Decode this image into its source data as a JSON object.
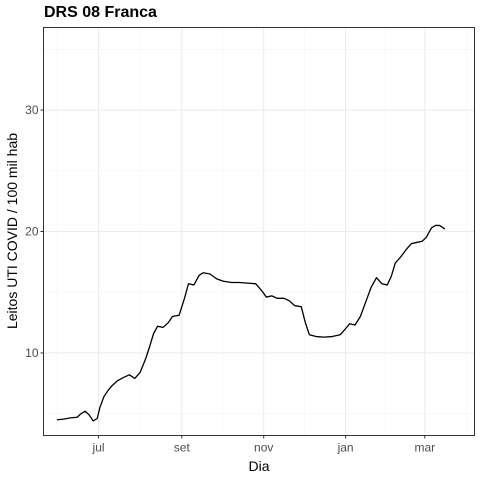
{
  "chart_data": {
    "type": "line",
    "title": "DRS 08 Franca",
    "xlabel": "Dia",
    "ylabel": "Leitos UTI COVID / 100 mil hab",
    "x_type": "date",
    "xlim": [
      "2020-05-21",
      "2021-04-07"
    ],
    "ylim": [
      3.2,
      36.8
    ],
    "x_ticks": [
      {
        "date": "2020-07-01",
        "label": "jul"
      },
      {
        "date": "2020-09-01",
        "label": "set"
      },
      {
        "date": "2020-11-01",
        "label": "nov"
      },
      {
        "date": "2021-01-01",
        "label": "jan"
      },
      {
        "date": "2021-03-01",
        "label": "mar"
      }
    ],
    "y_ticks": [
      10,
      20,
      30
    ],
    "grid": true,
    "legend": "none",
    "series": [
      {
        "color": "#000000",
        "points": [
          [
            "2020-05-31",
            4.5
          ],
          [
            "2020-06-05",
            4.55
          ],
          [
            "2020-06-10",
            4.65
          ],
          [
            "2020-06-15",
            4.7
          ],
          [
            "2020-06-18",
            5.0
          ],
          [
            "2020-06-21",
            5.2
          ],
          [
            "2020-06-24",
            4.9
          ],
          [
            "2020-06-27",
            4.4
          ],
          [
            "2020-06-30",
            4.6
          ],
          [
            "2020-07-02",
            5.5
          ],
          [
            "2020-07-05",
            6.4
          ],
          [
            "2020-07-08",
            6.9
          ],
          [
            "2020-07-11",
            7.3
          ],
          [
            "2020-07-15",
            7.7
          ],
          [
            "2020-07-20",
            8.0
          ],
          [
            "2020-07-24",
            8.2
          ],
          [
            "2020-07-28",
            7.9
          ],
          [
            "2020-08-01",
            8.4
          ],
          [
            "2020-08-05",
            9.5
          ],
          [
            "2020-08-08",
            10.5
          ],
          [
            "2020-08-11",
            11.6
          ],
          [
            "2020-08-14",
            12.2
          ],
          [
            "2020-08-18",
            12.1
          ],
          [
            "2020-08-22",
            12.5
          ],
          [
            "2020-08-25",
            13.0
          ],
          [
            "2020-08-30",
            13.1
          ],
          [
            "2020-09-03",
            14.5
          ],
          [
            "2020-09-06",
            15.7
          ],
          [
            "2020-09-10",
            15.6
          ],
          [
            "2020-09-14",
            16.4
          ],
          [
            "2020-09-17",
            16.6
          ],
          [
            "2020-09-22",
            16.5
          ],
          [
            "2020-09-27",
            16.1
          ],
          [
            "2020-10-02",
            15.9
          ],
          [
            "2020-10-08",
            15.8
          ],
          [
            "2020-10-14",
            15.8
          ],
          [
            "2020-10-20",
            15.75
          ],
          [
            "2020-10-26",
            15.7
          ],
          [
            "2020-10-30",
            15.2
          ],
          [
            "2020-11-03",
            14.6
          ],
          [
            "2020-11-07",
            14.7
          ],
          [
            "2020-11-11",
            14.5
          ],
          [
            "2020-11-16",
            14.5
          ],
          [
            "2020-11-20",
            14.3
          ],
          [
            "2020-11-24",
            13.9
          ],
          [
            "2020-11-29",
            13.8
          ],
          [
            "2020-12-02",
            12.5
          ],
          [
            "2020-12-05",
            11.5
          ],
          [
            "2020-12-10",
            11.35
          ],
          [
            "2020-12-16",
            11.3
          ],
          [
            "2020-12-22",
            11.35
          ],
          [
            "2020-12-28",
            11.5
          ],
          [
            "2021-01-01",
            12.0
          ],
          [
            "2021-01-04",
            12.4
          ],
          [
            "2021-01-08",
            12.3
          ],
          [
            "2021-01-12",
            13.0
          ],
          [
            "2021-01-16",
            14.2
          ],
          [
            "2021-01-20",
            15.4
          ],
          [
            "2021-01-24",
            16.2
          ],
          [
            "2021-01-28",
            15.7
          ],
          [
            "2021-02-01",
            15.6
          ],
          [
            "2021-02-04",
            16.3
          ],
          [
            "2021-02-07",
            17.4
          ],
          [
            "2021-02-11",
            17.9
          ],
          [
            "2021-02-15",
            18.5
          ],
          [
            "2021-02-19",
            19.0
          ],
          [
            "2021-02-23",
            19.1
          ],
          [
            "2021-02-27",
            19.2
          ],
          [
            "2021-03-02",
            19.5
          ],
          [
            "2021-03-06",
            20.3
          ],
          [
            "2021-03-09",
            20.5
          ],
          [
            "2021-03-12",
            20.5
          ],
          [
            "2021-03-16",
            20.2
          ]
        ]
      }
    ]
  }
}
